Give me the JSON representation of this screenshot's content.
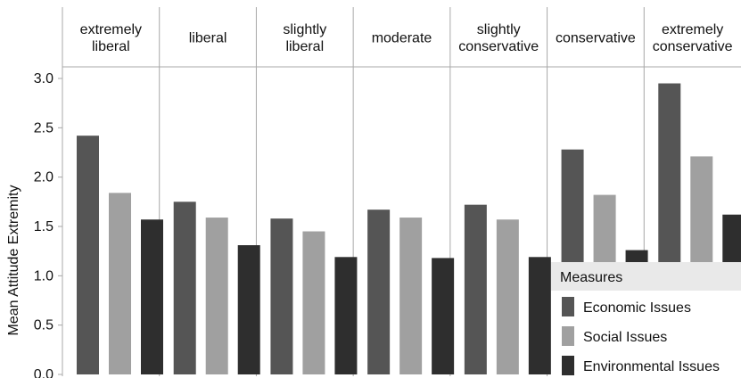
{
  "chart_data": {
    "type": "bar",
    "ylabel": "Mean Attitude Extremity",
    "ylim": [
      0,
      3.0
    ],
    "yticks": [
      "0.0",
      "0.5",
      "1.0",
      "1.5",
      "2.0",
      "2.5",
      "3.0"
    ],
    "ytick_values": [
      0,
      0.5,
      1.0,
      1.5,
      2.0,
      2.5,
      3.0
    ],
    "grid": false,
    "legend_position": "bottom-right",
    "panels": [
      {
        "label_lines": [
          "extremely",
          "liberal"
        ]
      },
      {
        "label_lines": [
          "liberal"
        ]
      },
      {
        "label_lines": [
          "slightly",
          "liberal"
        ]
      },
      {
        "label_lines": [
          "moderate"
        ]
      },
      {
        "label_lines": [
          "slightly",
          "conservative"
        ]
      },
      {
        "label_lines": [
          "conservative"
        ]
      },
      {
        "label_lines": [
          "extremely",
          "conservative"
        ]
      }
    ],
    "series": [
      {
        "name": "Economic Issues",
        "color": "#555555",
        "values": [
          2.42,
          1.75,
          1.58,
          1.67,
          1.72,
          2.28,
          2.95
        ]
      },
      {
        "name": "Social Issues",
        "color": "#a0a0a0",
        "values": [
          1.84,
          1.59,
          1.45,
          1.59,
          1.57,
          1.82,
          2.21
        ]
      },
      {
        "name": "Environmental Issues",
        "color": "#2e2e2e",
        "values": [
          1.57,
          1.31,
          1.19,
          1.18,
          1.19,
          1.26,
          1.62
        ]
      }
    ],
    "legend_title": "Measures"
  }
}
